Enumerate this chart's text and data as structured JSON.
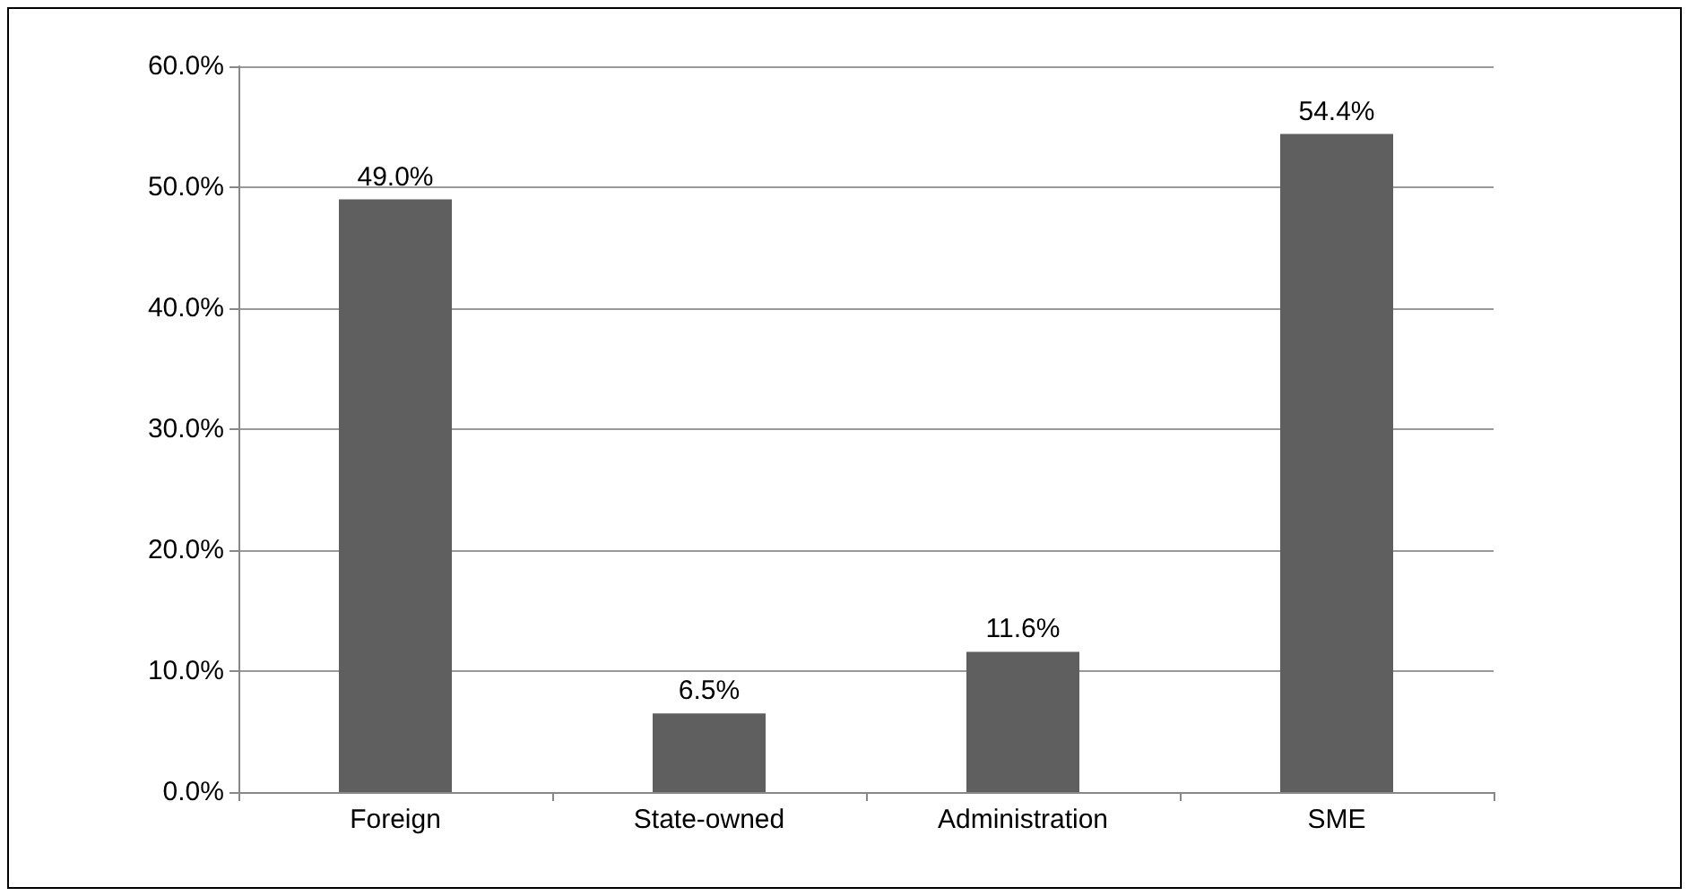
{
  "chart_data": {
    "type": "bar",
    "categories": [
      "Foreign",
      "State-owned",
      "Administration",
      "SME"
    ],
    "values": [
      49.0,
      6.5,
      11.6,
      54.4
    ],
    "color": "#5f5f5f",
    "value_labels": [
      "49.0%",
      "6.5%",
      "11.6%",
      "54.4%"
    ],
    "ylim": [
      0,
      60
    ],
    "yticks": [
      {
        "value": 0,
        "label": "0.0%"
      },
      {
        "value": 10,
        "label": "10.0%"
      },
      {
        "value": 20,
        "label": "20.0%"
      },
      {
        "value": 30,
        "label": "30.0%"
      },
      {
        "value": 40,
        "label": "40.0%"
      },
      {
        "value": 50,
        "label": "50.0%"
      },
      {
        "value": 60,
        "label": "60.0%"
      }
    ],
    "grid": "y"
  }
}
